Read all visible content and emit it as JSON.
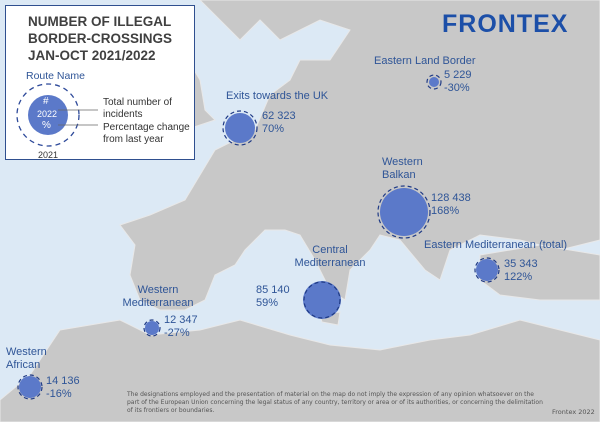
{
  "brand": "FRONTEX",
  "legend": {
    "title": [
      "NUMBER OF ILLEGAL",
      "BORDER-CROSSINGS",
      "JAN-OCT 2021/2022"
    ],
    "route_name": "Route Name",
    "hash": "#",
    "year_2022": "2022",
    "percent": "%",
    "year_2021": "2021",
    "total_label": "Total number of incidents",
    "pct_label": "Percentage change from last year"
  },
  "routes": [
    {
      "name": "Exits towards the UK",
      "count": "62 323",
      "change": "70%"
    },
    {
      "name": "Eastern Land Border",
      "count": "5 229",
      "change": "-30%"
    },
    {
      "name": "Western Balkan",
      "count": "128 438",
      "change": "168%"
    },
    {
      "name": "Eastern Mediterranean (total)",
      "count": "35 343",
      "change": "122%"
    },
    {
      "name": "Central Mediterranean",
      "count": "85 140",
      "change": "59%"
    },
    {
      "name": "Western Mediterranean",
      "count": "12 347",
      "change": "-27%"
    },
    {
      "name": "Western African",
      "count": "14 136",
      "change": "-16%"
    }
  ],
  "disclaimer": "The designations employed and the presentation of material on the map do not imply the expression of any opinion whatsoever on the part of the European Union concerning the legal status of any country, territory or area or of its authorities, or concerning the delimitation of its frontiers or boundaries.",
  "credit": "Frontex 2022",
  "colors": {
    "sea": "#dce9f5",
    "land": "#c8c8c8",
    "circle": "#5b79c9",
    "text": "#2f5597"
  }
}
